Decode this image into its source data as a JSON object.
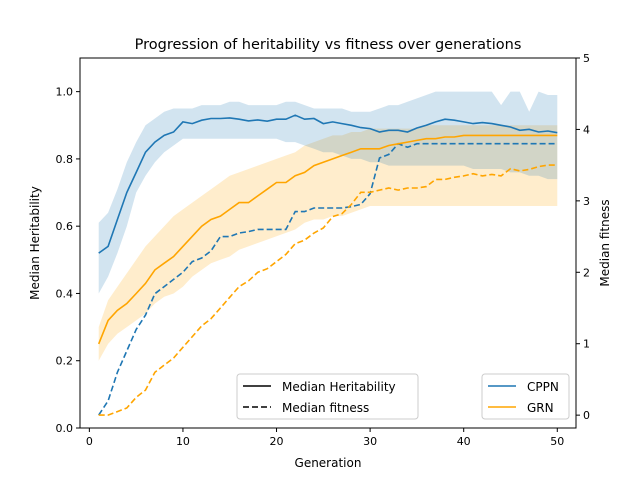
{
  "chart_data": {
    "type": "line",
    "title": "Progression of heritability vs fitness over generations",
    "xlabel": "Generation",
    "ylabel_left": "Median Heritability",
    "ylabel_right": "Median fitness",
    "xlim": [
      -1,
      52
    ],
    "ylim_left": [
      0.0,
      1.1
    ],
    "ylim_right": [
      -0.18,
      5.0
    ],
    "x_ticks": [
      0,
      10,
      20,
      30,
      40,
      50
    ],
    "y_ticks_left": [
      0.0,
      0.2,
      0.4,
      0.6,
      0.8,
      1.0
    ],
    "y_ticks_right": [
      0,
      1,
      2,
      3,
      4,
      5
    ],
    "x": [
      1,
      2,
      3,
      4,
      5,
      6,
      7,
      8,
      9,
      10,
      11,
      12,
      13,
      14,
      15,
      16,
      17,
      18,
      19,
      20,
      21,
      22,
      23,
      24,
      25,
      26,
      27,
      28,
      29,
      30,
      31,
      32,
      33,
      34,
      35,
      36,
      37,
      38,
      39,
      40,
      41,
      42,
      43,
      44,
      45,
      46,
      47,
      48,
      49,
      50
    ],
    "series": [
      {
        "name": "CPPN",
        "color": "#1f77b4",
        "heritability": [
          0.52,
          0.54,
          0.62,
          0.7,
          0.76,
          0.82,
          0.85,
          0.87,
          0.88,
          0.91,
          0.905,
          0.915,
          0.92,
          0.92,
          0.922,
          0.918,
          0.913,
          0.916,
          0.912,
          0.918,
          0.918,
          0.93,
          0.918,
          0.92,
          0.905,
          0.91,
          0.905,
          0.9,
          0.893,
          0.89,
          0.88,
          0.885,
          0.885,
          0.88,
          0.892,
          0.9,
          0.91,
          0.918,
          0.915,
          0.91,
          0.905,
          0.908,
          0.905,
          0.9,
          0.895,
          0.885,
          0.888,
          0.88,
          0.883,
          0.878
        ],
        "heritability_band_lower": [
          0.4,
          0.45,
          0.52,
          0.6,
          0.7,
          0.75,
          0.79,
          0.82,
          0.84,
          0.86,
          0.86,
          0.86,
          0.86,
          0.86,
          0.86,
          0.86,
          0.86,
          0.86,
          0.86,
          0.86,
          0.85,
          0.85,
          0.84,
          0.83,
          0.82,
          0.82,
          0.81,
          0.8,
          0.8,
          0.79,
          0.79,
          0.78,
          0.78,
          0.78,
          0.78,
          0.78,
          0.78,
          0.78,
          0.78,
          0.78,
          0.77,
          0.77,
          0.77,
          0.77,
          0.76,
          0.76,
          0.75,
          0.75,
          0.74,
          0.74
        ],
        "heritability_band_upper": [
          0.61,
          0.64,
          0.71,
          0.79,
          0.85,
          0.9,
          0.92,
          0.94,
          0.95,
          0.95,
          0.95,
          0.96,
          0.96,
          0.96,
          0.97,
          0.97,
          0.96,
          0.96,
          0.96,
          0.96,
          0.97,
          0.97,
          0.96,
          0.95,
          0.95,
          0.95,
          0.95,
          0.94,
          0.94,
          0.94,
          0.95,
          0.96,
          0.96,
          0.97,
          0.98,
          0.99,
          1.0,
          1.0,
          1.0,
          1.0,
          1.0,
          1.0,
          1.0,
          0.96,
          1.0,
          1.0,
          0.94,
          1.0,
          0.99,
          0.99
        ],
        "fitness": [
          0.0,
          0.2,
          0.6,
          0.9,
          1.2,
          1.4,
          1.7,
          1.8,
          1.9,
          2.0,
          2.15,
          2.2,
          2.3,
          2.5,
          2.5,
          2.55,
          2.57,
          2.6,
          2.6,
          2.6,
          2.6,
          2.85,
          2.85,
          2.9,
          2.9,
          2.9,
          2.9,
          2.92,
          2.95,
          3.1,
          3.6,
          3.65,
          3.8,
          3.75,
          3.8,
          3.8,
          3.8,
          3.8,
          3.8,
          3.8,
          3.8,
          3.8,
          3.8,
          3.8,
          3.8,
          3.8,
          3.8,
          3.8,
          3.8,
          3.8
        ]
      },
      {
        "name": "GRN",
        "color": "#ffa500",
        "heritability": [
          0.25,
          0.32,
          0.35,
          0.37,
          0.4,
          0.43,
          0.47,
          0.49,
          0.51,
          0.54,
          0.57,
          0.6,
          0.62,
          0.63,
          0.65,
          0.67,
          0.67,
          0.69,
          0.71,
          0.73,
          0.73,
          0.75,
          0.76,
          0.78,
          0.79,
          0.8,
          0.81,
          0.82,
          0.83,
          0.83,
          0.83,
          0.84,
          0.845,
          0.85,
          0.855,
          0.86,
          0.86,
          0.865,
          0.865,
          0.87,
          0.87,
          0.87,
          0.87,
          0.87,
          0.87,
          0.87,
          0.87,
          0.87,
          0.87,
          0.87
        ],
        "heritability_band_lower": [
          0.2,
          0.25,
          0.28,
          0.3,
          0.32,
          0.34,
          0.37,
          0.39,
          0.4,
          0.42,
          0.45,
          0.47,
          0.49,
          0.5,
          0.51,
          0.53,
          0.54,
          0.55,
          0.56,
          0.57,
          0.58,
          0.59,
          0.61,
          0.62,
          0.62,
          0.63,
          0.63,
          0.64,
          0.65,
          0.66,
          0.66,
          0.66,
          0.66,
          0.66,
          0.66,
          0.66,
          0.66,
          0.66,
          0.66,
          0.66,
          0.66,
          0.66,
          0.66,
          0.66,
          0.66,
          0.66,
          0.66,
          0.66,
          0.66,
          0.66
        ],
        "heritability_band_upper": [
          0.3,
          0.38,
          0.42,
          0.46,
          0.5,
          0.54,
          0.57,
          0.6,
          0.63,
          0.65,
          0.67,
          0.69,
          0.71,
          0.73,
          0.75,
          0.76,
          0.77,
          0.78,
          0.79,
          0.8,
          0.81,
          0.82,
          0.84,
          0.85,
          0.86,
          0.87,
          0.87,
          0.88,
          0.88,
          0.89,
          0.89,
          0.89,
          0.89,
          0.89,
          0.89,
          0.9,
          0.9,
          0.9,
          0.9,
          0.9,
          0.9,
          0.9,
          0.9,
          0.9,
          0.9,
          0.9,
          0.9,
          0.9,
          0.9,
          0.9
        ],
        "fitness": [
          0.0,
          0.0,
          0.05,
          0.1,
          0.25,
          0.35,
          0.6,
          0.7,
          0.8,
          0.95,
          1.1,
          1.25,
          1.35,
          1.5,
          1.65,
          1.8,
          1.88,
          2.0,
          2.05,
          2.15,
          2.25,
          2.4,
          2.45,
          2.55,
          2.62,
          2.78,
          2.82,
          2.95,
          3.12,
          3.12,
          3.15,
          3.18,
          3.15,
          3.18,
          3.18,
          3.2,
          3.3,
          3.3,
          3.33,
          3.35,
          3.38,
          3.35,
          3.37,
          3.35,
          3.45,
          3.42,
          3.44,
          3.48,
          3.5,
          3.5
        ]
      }
    ],
    "legend_styles": {
      "title_placement": "lower-center",
      "items": [
        {
          "label": "Median Heritability",
          "dash": "solid"
        },
        {
          "label": "Median fitness",
          "dash": "dashed"
        }
      ]
    },
    "legend_models": {
      "placement": "lower-right",
      "items": [
        {
          "label": "CPPN",
          "color": "#1f77b4"
        },
        {
          "label": "GRN",
          "color": "#ffa500"
        }
      ]
    }
  }
}
